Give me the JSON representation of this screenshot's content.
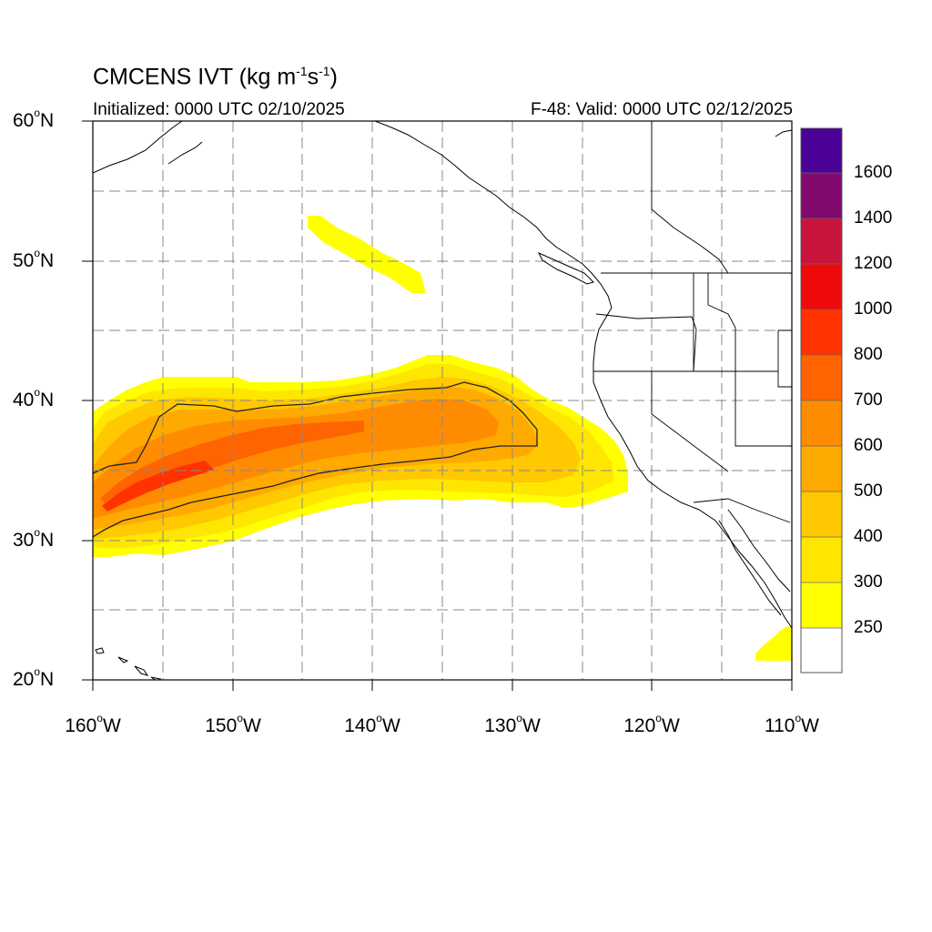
{
  "title": {
    "text": "CMCENS IVT (kg m",
    "exp1": "-1",
    "mid": "s",
    "exp2": "-1",
    "close": ")"
  },
  "initialized": "Initialized: 0000 UTC 02/10/2025",
  "valid": "F-48: Valid: 0000 UTC 02/12/2025",
  "lat_labels": [
    {
      "value": "60",
      "hemi": "N"
    },
    {
      "value": "50",
      "hemi": "N"
    },
    {
      "value": "40",
      "hemi": "N"
    },
    {
      "value": "30",
      "hemi": "N"
    },
    {
      "value": "20",
      "hemi": "N"
    }
  ],
  "lon_labels": [
    {
      "value": "160",
      "hemi": "W"
    },
    {
      "value": "150",
      "hemi": "W"
    },
    {
      "value": "140",
      "hemi": "W"
    },
    {
      "value": "130",
      "hemi": "W"
    },
    {
      "value": "120",
      "hemi": "W"
    },
    {
      "value": "110",
      "hemi": "W"
    }
  ],
  "degree_symbol": "o",
  "colorbar": {
    "labels": [
      "1600",
      "1400",
      "1200",
      "1000",
      "800",
      "700",
      "600",
      "500",
      "400",
      "300",
      "250"
    ],
    "colors": [
      "#ffffff",
      "#ffff00",
      "#ffe600",
      "#ffc800",
      "#ffaa00",
      "#ff8c00",
      "#ff6400",
      "#ff3200",
      "#ee0a0a",
      "#c8143c",
      "#820a6e",
      "#4b0096"
    ]
  },
  "map": {
    "extent": {
      "lon": [
        -160,
        -110
      ],
      "lat": [
        20,
        60
      ]
    },
    "colors": {
      "land_outline": "#000000",
      "grid": "#888888",
      "ivt_contour": "#222222"
    }
  }
}
